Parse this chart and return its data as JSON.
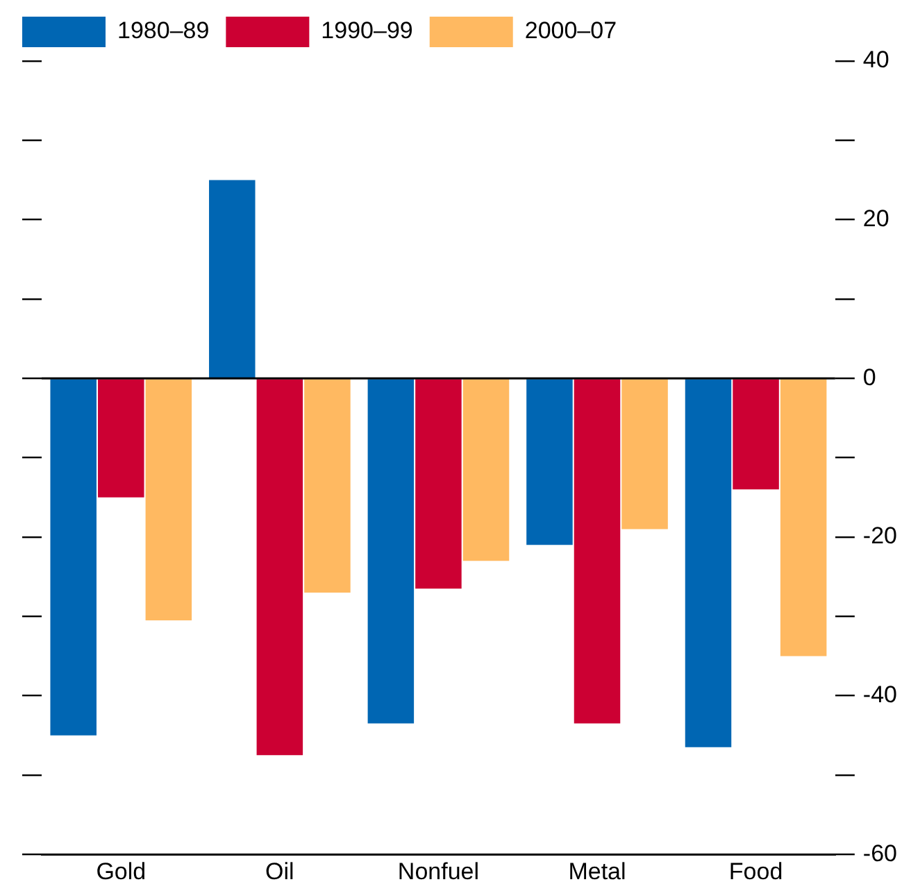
{
  "chart_data": {
    "type": "bar",
    "categories": [
      "Gold",
      "Oil",
      "Nonfuel",
      "Metal",
      "Food"
    ],
    "series": [
      {
        "name": "1980–89",
        "color": "#0066b3",
        "values": [
          -45,
          25,
          -43.5,
          -21,
          -46.5
        ]
      },
      {
        "name": "1990–99",
        "color": "#cc0033",
        "values": [
          -15,
          -47.5,
          -26.5,
          -43.5,
          -14
        ]
      },
      {
        "name": "2000–07",
        "color": "#ffb961",
        "values": [
          -30.5,
          -27,
          -23,
          -19,
          -35
        ]
      }
    ],
    "ylim": [
      -60,
      40
    ],
    "yticks": [
      40,
      {
        "value": 30,
        "label": null
      },
      20,
      {
        "value": 10,
        "label": null
      },
      0,
      {
        "value": -10,
        "label": null
      },
      -20,
      {
        "value": -30,
        "label": null
      },
      -40,
      {
        "value": -50,
        "label": null
      },
      -60
    ],
    "ref_lines": [
      {
        "axis": "y",
        "value": 0,
        "color": "#000000"
      }
    ],
    "legend": "top",
    "grid": false
  }
}
